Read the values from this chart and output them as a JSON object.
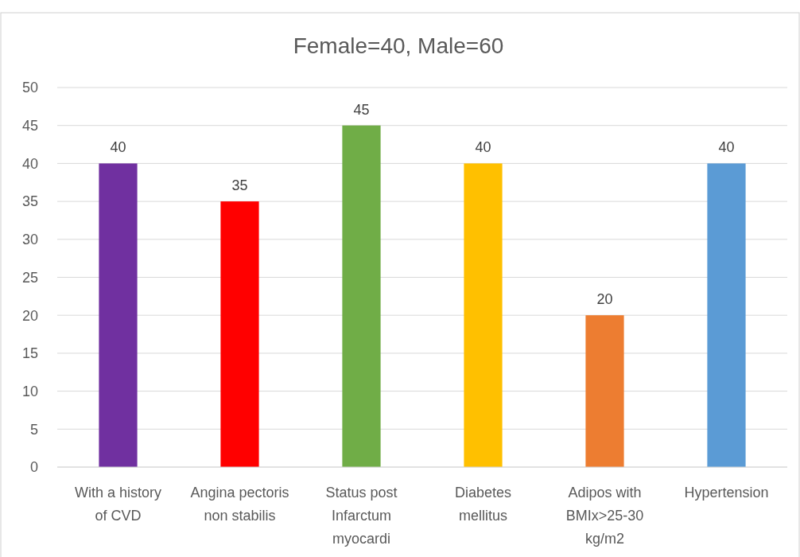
{
  "chart_data": {
    "type": "bar",
    "title": "Female=40, Male=60",
    "categories": [
      "With a history of CVD",
      "Angina pectoris non stabilis",
      "Status post Infarctum myocardi",
      "Diabetes mellitus",
      "Adipos with BMIx>25-30 kg/m2",
      "Hypertension"
    ],
    "values": [
      40,
      35,
      45,
      40,
      20,
      40
    ],
    "colors": [
      "#7030a0",
      "#ff0000",
      "#70ad47",
      "#ffc000",
      "#ed7d31",
      "#5b9bd5"
    ],
    "ylim": [
      0,
      50
    ],
    "yticks": [
      0,
      5,
      10,
      15,
      20,
      25,
      30,
      35,
      40,
      45,
      50
    ],
    "grid": "y",
    "data_labels": true
  }
}
